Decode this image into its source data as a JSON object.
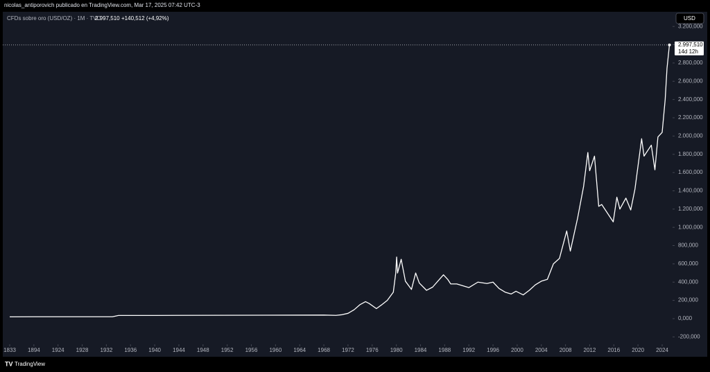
{
  "chart_data": {
    "type": "line",
    "publisher_note": "nicolas_antiporovich publicado en TradingView.com, Mar 17, 2025 07:42 UTC-3",
    "title": "CFDs sobre oro (USD/OZ) · 1M · TVC",
    "last_label": "2.997,510",
    "change_label": "+140,512 (+4,92%)",
    "currency": "USD",
    "countdown": "14d 12h",
    "footer": "TradingView",
    "color": "#ffffff",
    "grid": false,
    "x": [
      1833,
      1894,
      1924,
      1933,
      1934,
      1940,
      1968,
      1970,
      1971,
      1972,
      1973,
      1974,
      1974.9,
      1975.5,
      1976.7,
      1977.5,
      1978.5,
      1979.5,
      1979.9,
      1980.05,
      1980.2,
      1980.8,
      1981.5,
      1982.5,
      1983.2,
      1983.8,
      1985,
      1986,
      1987.8,
      1988.5,
      1989,
      1990,
      1991,
      1992,
      1993.5,
      1995,
      1996,
      1997,
      1998,
      1999,
      1999.8,
      2001,
      2002,
      2003,
      2004,
      2005,
      2006,
      2007,
      2008.2,
      2008.8,
      2009.5,
      2010,
      2011,
      2011.7,
      2012,
      2012.8,
      2013.5,
      2014,
      2014.8,
      2015.9,
      2016.5,
      2017,
      2018,
      2018.8,
      2019.5,
      2020.6,
      2021,
      2022.2,
      2022.8,
      2023.3,
      2024,
      2024.5,
      2024.8,
      2025.2
    ],
    "values": [
      19.4,
      20.67,
      20.67,
      20.67,
      35,
      35,
      39,
      36,
      43,
      58,
      97,
      154,
      186,
      166,
      110,
      148,
      200,
      290,
      500,
      675,
      500,
      650,
      410,
      320,
      500,
      390,
      310,
      345,
      480,
      430,
      380,
      380,
      360,
      340,
      400,
      385,
      400,
      330,
      290,
      270,
      300,
      260,
      310,
      370,
      410,
      430,
      600,
      660,
      960,
      740,
      950,
      1100,
      1450,
      1820,
      1620,
      1780,
      1230,
      1250,
      1170,
      1060,
      1330,
      1200,
      1320,
      1190,
      1420,
      1970,
      1780,
      1900,
      1630,
      1990,
      2040,
      2400,
      2740,
      2997.51
    ],
    "ylim": [
      -281,
      3361
    ],
    "yticks": [
      {
        "value": -200,
        "label": "-200,000"
      },
      {
        "value": 0,
        "label": "0,000"
      },
      {
        "value": 200,
        "label": "200,000"
      },
      {
        "value": 400,
        "label": "400,000"
      },
      {
        "value": 600,
        "label": "600,000"
      },
      {
        "value": 800,
        "label": "800,000"
      },
      {
        "value": 1000,
        "label": "1.000,000"
      },
      {
        "value": 1200,
        "label": "1.200,000"
      },
      {
        "value": 1400,
        "label": "1.400,000"
      },
      {
        "value": 1600,
        "label": "1.600,000"
      },
      {
        "value": 1800,
        "label": "1.800,000"
      },
      {
        "value": 2000,
        "label": "2.000,000"
      },
      {
        "value": 2200,
        "label": "2.200,000"
      },
      {
        "value": 2400,
        "label": "2.400,000"
      },
      {
        "value": 2600,
        "label": "2.600,000"
      },
      {
        "value": 2800,
        "label": "2.800,000"
      },
      {
        "value": 3000,
        "label": "3.000,000"
      },
      {
        "value": 3200,
        "label": "3.200,000"
      }
    ],
    "xticks": [
      1833,
      1894,
      1924,
      1928,
      1932,
      1936,
      1940,
      1944,
      1948,
      1952,
      1956,
      1960,
      1964,
      1968,
      1972,
      1976,
      1980,
      1984,
      1988,
      1992,
      1996,
      2000,
      2004,
      2008,
      2012,
      2016,
      2020,
      2024
    ]
  }
}
